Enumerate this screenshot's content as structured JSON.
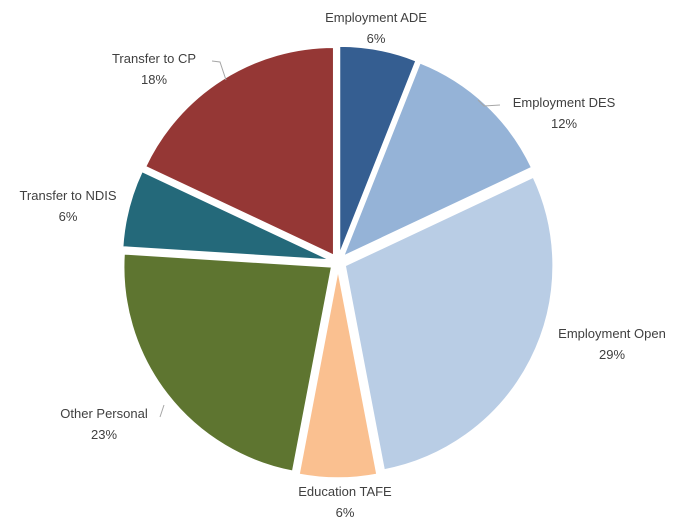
{
  "chart_data": {
    "type": "pie",
    "title": "",
    "slices": [
      {
        "label": "Employment ADE",
        "value": 6,
        "display": "6%",
        "color": "#355e91"
      },
      {
        "label": "Employment DES",
        "value": 12,
        "display": "12%",
        "color": "#95b3d7"
      },
      {
        "label": "Employment Open",
        "value": 29,
        "display": "29%",
        "color": "#b9cde5"
      },
      {
        "label": "Education TAFE",
        "value": 6,
        "display": "6%",
        "color": "#fac090"
      },
      {
        "label": "Other Personal",
        "value": 23,
        "display": "23%",
        "color": "#5e7530"
      },
      {
        "label": "Transfer to NDIS",
        "value": 6,
        "display": "6%",
        "color": "#24697a"
      },
      {
        "label": "Transfer to CP",
        "value": 18,
        "display": "18%",
        "color": "#953735"
      }
    ],
    "start_angle": "top",
    "direction": "clockwise",
    "exploded": true,
    "legend": "none",
    "data_labels": "outside with leader lines"
  }
}
